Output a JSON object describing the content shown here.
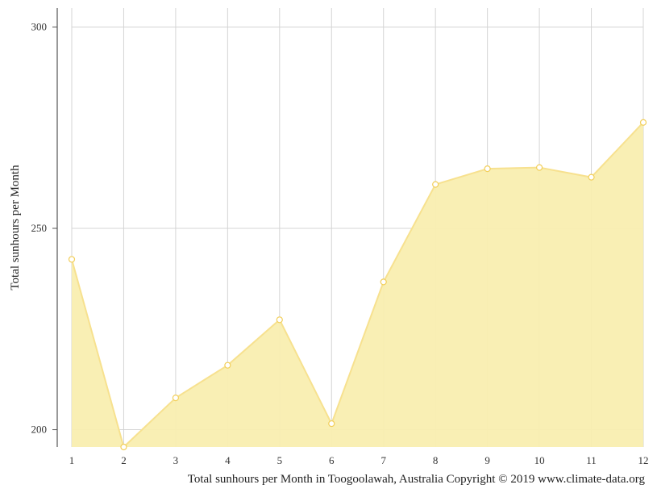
{
  "chart_data": {
    "type": "area",
    "title": "",
    "xlabel": "",
    "ylabel": "Total sunhours per Month",
    "caption": "Total sunhours per Month in Toogoolawah, Australia Copyright © 2019 www.climate-data.org",
    "x": [
      "1",
      "2",
      "3",
      "4",
      "5",
      "6",
      "7",
      "8",
      "9",
      "10",
      "11",
      "12"
    ],
    "series": [
      {
        "values": [
          242.3,
          195.7,
          207.9,
          216.0,
          227.3,
          201.5,
          236.7,
          260.9,
          264.8,
          265.1,
          262.7,
          276.3
        ]
      }
    ],
    "y_ticks": [
      200,
      250,
      300
    ],
    "ylim": [
      195.7,
      304.7
    ],
    "grid": true,
    "legend": "none"
  },
  "colors": {
    "fill": "#f9eeb0",
    "line": "#f7e18f",
    "marker_stroke": "#f2cf5b",
    "grid": "#d4d4d4",
    "axis": "#555555"
  }
}
